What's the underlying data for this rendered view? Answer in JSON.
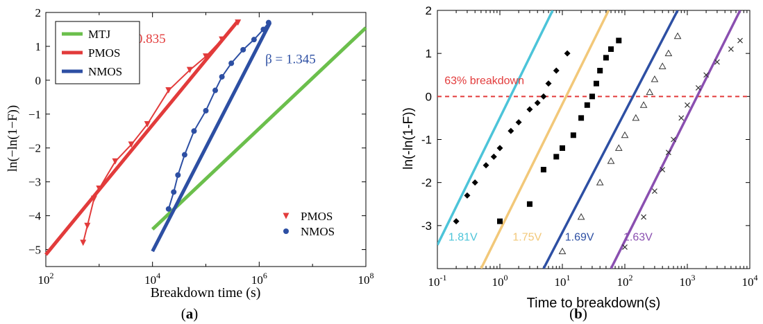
{
  "chart_data": [
    {
      "panel_label": "(a)",
      "panel_letter": "a",
      "type": "line",
      "xlabel": "Breakdown time (s)",
      "ylabel": "ln(−ln(1−F))",
      "xscale": "log",
      "xlim": [
        100,
        100000000
      ],
      "ylim": [
        -5.5,
        2
      ],
      "x_tick_exponents": [
        2,
        4,
        6,
        8
      ],
      "y_ticks": [
        -5,
        -4,
        -3,
        -2,
        -1,
        0,
        1,
        2
      ],
      "legend": [
        "MTJ",
        "PMOS",
        "NMOS"
      ],
      "legend_placement": "top-left",
      "marker_legend": [
        "PMOS",
        "NMOS"
      ],
      "marker_legend_placement": "bottom-right",
      "annotations": [
        {
          "text": "β = 0.835",
          "color": "#e23b3b",
          "x": 2000,
          "y": 1.1
        },
        {
          "text": "β = 1.345",
          "color": "#2d4fa3",
          "x": 1300000,
          "y": 0.5
        }
      ],
      "series": [
        {
          "name": "MTJ",
          "color": "#6bbf4c",
          "kind": "fit",
          "x": [
            10000,
            100000000
          ],
          "y": [
            -4.4,
            1.55
          ]
        },
        {
          "name": "PMOS",
          "color": "#e23b3b",
          "kind": "fit",
          "x": [
            100,
            400000
          ],
          "y": [
            -5.15,
            1.75
          ]
        },
        {
          "name": "NMOS",
          "color": "#2d4fa3",
          "kind": "fit",
          "x": [
            10000,
            1600000
          ],
          "y": [
            -5.05,
            1.7
          ]
        },
        {
          "name": "PMOS",
          "color": "#e23b3b",
          "kind": "data",
          "marker": "triangle-down",
          "x": [
            500,
            600,
            800,
            1000,
            2000,
            4000,
            8000,
            20000,
            50000,
            100000,
            200000,
            400000
          ],
          "y": [
            -4.8,
            -4.3,
            -3.5,
            -3.2,
            -2.4,
            -1.9,
            -1.3,
            -0.3,
            0.3,
            0.7,
            1.2,
            1.7
          ]
        },
        {
          "name": "NMOS",
          "color": "#2d4fa3",
          "kind": "data",
          "marker": "circle",
          "x": [
            20000,
            25000,
            30000,
            40000,
            60000,
            100000,
            150000,
            200000,
            300000,
            500000,
            800000,
            1200000,
            1500000
          ],
          "y": [
            -3.8,
            -3.3,
            -2.8,
            -2.2,
            -1.5,
            -0.9,
            -0.3,
            0.1,
            0.5,
            0.9,
            1.2,
            1.5,
            1.7
          ]
        }
      ]
    },
    {
      "panel_label": "(b)",
      "panel_letter": "b",
      "type": "scatter",
      "xlabel": "Time to breakdown(s)",
      "ylabel": "ln(-ln(1-F))",
      "xscale": "log",
      "xlim": [
        0.1,
        10000
      ],
      "ylim": [
        -4,
        2
      ],
      "x_tick_exponents": [
        -1,
        0,
        1,
        2,
        3,
        4
      ],
      "y_ticks": [
        -3,
        -2,
        -1,
        0,
        1,
        2
      ],
      "reference_line": {
        "y": 0,
        "label": "63% breakdown",
        "color": "#e23b3b"
      },
      "series": [
        {
          "name": "1.81V",
          "color": "#4cc4d9",
          "marker": "diamond",
          "fit": {
            "x": [
              0.1,
              7
            ],
            "y": [
              -3.45,
              2.0
            ]
          },
          "x": [
            0.2,
            0.3,
            0.4,
            0.6,
            0.8,
            1.0,
            1.5,
            2,
            3,
            4,
            5,
            6,
            8,
            12
          ],
          "y": [
            -2.9,
            -2.3,
            -2.0,
            -1.6,
            -1.4,
            -1.2,
            -0.8,
            -0.6,
            -0.3,
            -0.15,
            0.0,
            0.3,
            0.6,
            1.0
          ]
        },
        {
          "name": "1.75V",
          "color": "#f2c879",
          "marker": "square",
          "fit": {
            "x": [
              0.5,
              55
            ],
            "y": [
              -4.0,
              2.0
            ]
          },
          "x": [
            1,
            3,
            5,
            8,
            10,
            15,
            20,
            25,
            30,
            35,
            40,
            50,
            60,
            80
          ],
          "y": [
            -2.9,
            -2.5,
            -1.7,
            -1.4,
            -1.2,
            -0.9,
            -0.5,
            -0.2,
            0.0,
            0.3,
            0.6,
            0.9,
            1.1,
            1.3
          ]
        },
        {
          "name": "1.69V",
          "color": "#2d4fa3",
          "marker": "triangle-open",
          "fit": {
            "x": [
              5,
              700
            ],
            "y": [
              -4.0,
              2.0
            ]
          },
          "x": [
            10,
            20,
            40,
            60,
            80,
            100,
            150,
            200,
            250,
            300,
            400,
            500,
            700
          ],
          "y": [
            -3.6,
            -2.8,
            -2.0,
            -1.5,
            -1.2,
            -0.9,
            -0.5,
            -0.2,
            0.1,
            0.4,
            0.7,
            1.0,
            1.4
          ]
        },
        {
          "name": "1.63V",
          "color": "#8a4fb0",
          "marker": "x",
          "fit": {
            "x": [
              60,
              7000
            ],
            "y": [
              -4.0,
              2.0
            ]
          },
          "x": [
            100,
            200,
            300,
            400,
            500,
            600,
            800,
            1000,
            1500,
            2000,
            3000,
            5000,
            7000
          ],
          "y": [
            -3.5,
            -2.8,
            -2.2,
            -1.7,
            -1.3,
            -1.0,
            -0.5,
            -0.2,
            0.2,
            0.5,
            0.8,
            1.1,
            1.3
          ]
        }
      ]
    }
  ]
}
